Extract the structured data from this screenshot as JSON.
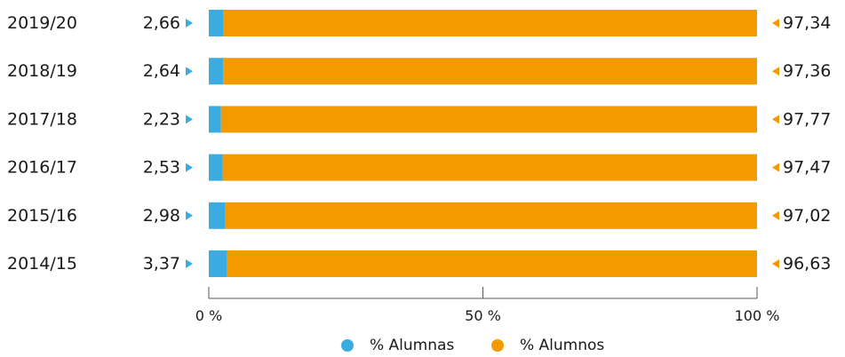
{
  "chart_data": {
    "type": "bar",
    "orientation": "horizontal",
    "stacked": "percent",
    "categories": [
      "2019/20",
      "2018/19",
      "2017/18",
      "2016/17",
      "2015/16",
      "2014/15"
    ],
    "series": [
      {
        "name": "% Alumnas",
        "values": [
          2.66,
          2.64,
          2.23,
          2.53,
          2.98,
          3.37
        ],
        "color": "#3aace0"
      },
      {
        "name": "% Alumnos",
        "values": [
          97.34,
          97.36,
          97.77,
          97.47,
          97.02,
          96.63
        ],
        "color": "#f39a00"
      }
    ],
    "value_labels": {
      "alumnas": [
        "2,66",
        "2,64",
        "2,23",
        "2,53",
        "2,98",
        "3,37"
      ],
      "alumnos": [
        "97,34",
        "97,36",
        "97,77",
        "97,47",
        "97,02",
        "96,63"
      ]
    },
    "xlim": [
      0,
      100
    ],
    "x_ticks": [
      0,
      50,
      100
    ],
    "x_tick_labels": [
      "0 %",
      "50 %",
      "100 %"
    ],
    "legend_position": "bottom-center",
    "grid": false
  }
}
